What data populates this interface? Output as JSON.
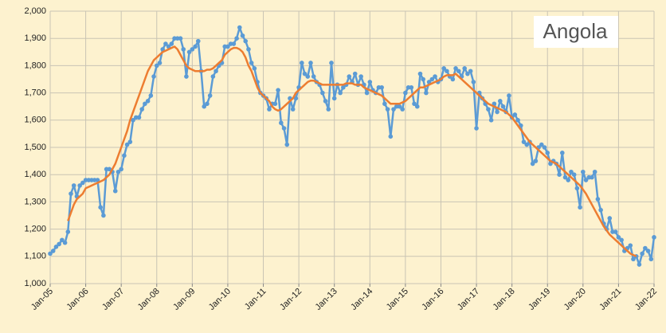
{
  "chart_data": {
    "type": "line",
    "title": "Angola",
    "categories": [
      "Jan-05",
      null,
      null,
      null,
      null,
      null,
      null,
      null,
      null,
      null,
      null,
      null,
      "Jan-06",
      null,
      null,
      null,
      null,
      null,
      null,
      null,
      null,
      null,
      null,
      null,
      "Jan-07",
      null,
      null,
      null,
      null,
      null,
      null,
      null,
      null,
      null,
      null,
      null,
      "Jan-08",
      null,
      null,
      null,
      null,
      null,
      null,
      null,
      null,
      null,
      null,
      null,
      "Jan-09",
      null,
      null,
      null,
      null,
      null,
      null,
      null,
      null,
      null,
      null,
      null,
      "Jan-10",
      null,
      null,
      null,
      null,
      null,
      null,
      null,
      null,
      null,
      null,
      null,
      "Jan-11",
      null,
      null,
      null,
      null,
      null,
      null,
      null,
      null,
      null,
      null,
      null,
      "Jan-12",
      null,
      null,
      null,
      null,
      null,
      null,
      null,
      null,
      null,
      null,
      null,
      "Jan-13",
      null,
      null,
      null,
      null,
      null,
      null,
      null,
      null,
      null,
      null,
      null,
      "Jan-14",
      null,
      null,
      null,
      null,
      null,
      null,
      null,
      null,
      null,
      null,
      null,
      "Jan-15",
      null,
      null,
      null,
      null,
      null,
      null,
      null,
      null,
      null,
      null,
      null,
      "Jan-16",
      null,
      null,
      null,
      null,
      null,
      null,
      null,
      null,
      null,
      null,
      null,
      "Jan-17",
      null,
      null,
      null,
      null,
      null,
      null,
      null,
      null,
      null,
      null,
      null,
      "Jan-18",
      null,
      null,
      null,
      null,
      null,
      null,
      null,
      null,
      null,
      null,
      null,
      "Jan-19",
      null,
      null,
      null,
      null,
      null,
      null,
      null,
      null,
      null,
      null,
      null,
      "Jan-20",
      null,
      null,
      null,
      null,
      null,
      null,
      null,
      null,
      null,
      null,
      null,
      "Jan-21",
      null,
      null,
      null,
      null,
      null,
      null,
      null,
      null,
      null,
      null,
      null,
      "Jan-22"
    ],
    "series": [
      {
        "color": "#5b9bd5",
        "markers": true,
        "values": [
          1110,
          1120,
          1135,
          1145,
          1160,
          1150,
          1190,
          1330,
          1360,
          1320,
          1360,
          1370,
          1380,
          1380,
          1380,
          1380,
          1380,
          1280,
          1250,
          1420,
          1420,
          1410,
          1340,
          1410,
          1420,
          1470,
          1510,
          1520,
          1600,
          1610,
          1610,
          1640,
          1660,
          1670,
          1690,
          1760,
          1800,
          1810,
          1860,
          1880,
          1870,
          1880,
          1900,
          1900,
          1900,
          1860,
          1760,
          1850,
          1860,
          1870,
          1890,
          1780,
          1650,
          1660,
          1690,
          1760,
          1780,
          1800,
          1810,
          1870,
          1870,
          1880,
          1880,
          1900,
          1940,
          1910,
          1890,
          1860,
          1810,
          1790,
          1740,
          1700,
          1690,
          1680,
          1640,
          1660,
          1660,
          1710,
          1590,
          1570,
          1510,
          1680,
          1640,
          1680,
          1720,
          1810,
          1770,
          1760,
          1810,
          1760,
          1740,
          1730,
          1700,
          1670,
          1640,
          1810,
          1680,
          1730,
          1700,
          1720,
          1730,
          1760,
          1740,
          1770,
          1730,
          1760,
          1730,
          1700,
          1740,
          1710,
          1700,
          1720,
          1720,
          1660,
          1640,
          1540,
          1640,
          1650,
          1650,
          1640,
          1700,
          1720,
          1720,
          1660,
          1650,
          1770,
          1750,
          1700,
          1740,
          1750,
          1760,
          1740,
          1750,
          1790,
          1780,
          1760,
          1750,
          1790,
          1780,
          1760,
          1790,
          1770,
          1780,
          1740,
          1570,
          1700,
          1680,
          1660,
          1640,
          1600,
          1660,
          1630,
          1670,
          1650,
          1630,
          1690,
          1610,
          1620,
          1600,
          1580,
          1520,
          1510,
          1520,
          1440,
          1450,
          1500,
          1510,
          1500,
          1480,
          1440,
          1450,
          1440,
          1400,
          1480,
          1390,
          1380,
          1410,
          1400,
          1350,
          1280,
          1410,
          1380,
          1390,
          1390,
          1410,
          1310,
          1270,
          1220,
          1200,
          1240,
          1190,
          1190,
          1170,
          1160,
          1120,
          1130,
          1140,
          1090,
          1100,
          1070,
          1110,
          1130,
          1120,
          1090,
          1170
        ]
      },
      {
        "color": "#ed7d31",
        "markers": false,
        "values": [
          null,
          null,
          null,
          null,
          null,
          null,
          1230,
          1260,
          1290,
          1310,
          1320,
          1330,
          1350,
          1355,
          1360,
          1365,
          1370,
          1375,
          1380,
          1390,
          1400,
          1420,
          1440,
          1470,
          1500,
          1530,
          1560,
          1600,
          1630,
          1660,
          1690,
          1720,
          1750,
          1780,
          1800,
          1820,
          1830,
          1840,
          1850,
          1855,
          1860,
          1865,
          1870,
          1860,
          1840,
          1820,
          1800,
          1790,
          1785,
          1780,
          1780,
          1780,
          1780,
          1785,
          1785,
          1790,
          1800,
          1810,
          1820,
          1840,
          1850,
          1860,
          1865,
          1865,
          1860,
          1850,
          1830,
          1800,
          1780,
          1750,
          1720,
          1700,
          1690,
          1680,
          1670,
          1650,
          1640,
          1635,
          1640,
          1650,
          1660,
          1670,
          1680,
          1700,
          1710,
          1720,
          1730,
          1740,
          1745,
          1745,
          1740,
          1735,
          1730,
          1730,
          1730,
          1730,
          1730,
          1730,
          1730,
          1730,
          1735,
          1735,
          1735,
          1730,
          1730,
          1730,
          1720,
          1715,
          1710,
          1705,
          1700,
          1695,
          1690,
          1680,
          1670,
          1660,
          1660,
          1660,
          1660,
          1665,
          1670,
          1680,
          1690,
          1700,
          1710,
          1720,
          1720,
          1725,
          1730,
          1735,
          1740,
          1745,
          1750,
          1760,
          1765,
          1765,
          1765,
          1770,
          1760,
          1750,
          1740,
          1730,
          1720,
          1710,
          1700,
          1690,
          1680,
          1670,
          1660,
          1655,
          1650,
          1645,
          1640,
          1635,
          1630,
          1620,
          1610,
          1595,
          1580,
          1565,
          1550,
          1535,
          1520,
          1510,
          1500,
          1490,
          1480,
          1470,
          1460,
          1450,
          1445,
          1440,
          1430,
          1420,
          1410,
          1400,
          1390,
          1380,
          1370,
          1360,
          1345,
          1330,
          1310,
          1290,
          1270,
          1250,
          1230,
          1210,
          1195,
          1180,
          1170,
          1160,
          1150,
          1140,
          1130,
          1120,
          1110,
          1105,
          1100,
          null,
          null,
          null,
          null,
          null,
          null
        ]
      }
    ],
    "ylim": [
      1000,
      2000
    ],
    "yticks": [
      {
        "value": 1000,
        "label": "1,000"
      },
      {
        "value": 1100,
        "label": "1,100"
      },
      {
        "value": 1200,
        "label": "1,200"
      },
      {
        "value": 1300,
        "label": "1,300"
      },
      {
        "value": 1400,
        "label": "1,400"
      },
      {
        "value": 1500,
        "label": "1,500"
      },
      {
        "value": 1600,
        "label": "1,600"
      },
      {
        "value": 1700,
        "label": "1,700"
      },
      {
        "value": 1800,
        "label": "1,800"
      },
      {
        "value": 1900,
        "label": "1,900"
      },
      {
        "value": 2000,
        "label": "2,000"
      }
    ],
    "grid": true
  }
}
